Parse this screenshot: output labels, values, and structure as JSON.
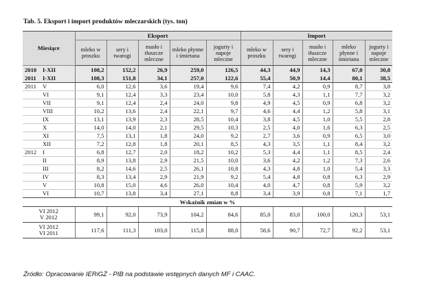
{
  "title": "Tab. 5. Eksport i import produktów mleczarskich (tys. ton)",
  "header": {
    "miesiace": "Miesiące",
    "eksport": "Eksport",
    "import": "Import",
    "cols_eksport": [
      "mleko w proszku",
      "sery i twarogi",
      "masło i tłuszcze mleczne",
      "mleko płynne i śmietana",
      "jogurty i napoje mleczne"
    ],
    "cols_import": [
      "mleko w proszku",
      "sery i twarogi",
      "masło i tłuszcze mleczne",
      "mleko płynne i śmietana",
      "jogurty i napoje mleczne"
    ]
  },
  "summary_rows": [
    {
      "year": "2010",
      "period": "I-XII",
      "values": [
        "108,2",
        "152,2",
        "26,9",
        "259,0",
        "126,5",
        "44,3",
        "44,9",
        "14,3",
        "67,0",
        "30,8"
      ]
    },
    {
      "year": "2011",
      "period": "I-XII",
      "values": [
        "108,3",
        "151,8",
        "34,1",
        "257,0",
        "122,6",
        "55,4",
        "50,9",
        "14,4",
        "80,1",
        "38,5"
      ]
    }
  ],
  "monthly_rows": [
    {
      "year": "2011",
      "month": "V",
      "values": [
        "6,0",
        "12,6",
        "3,6",
        "19,4",
        "9,6",
        "7,4",
        "4,2",
        "0,9",
        "8,7",
        "3,8"
      ]
    },
    {
      "year": "",
      "month": "VI",
      "values": [
        "9,1",
        "12,4",
        "3,3",
        "23,4",
        "10,0",
        "5,8",
        "4,3",
        "1,1",
        "7,7",
        "3,2"
      ]
    },
    {
      "year": "",
      "month": "VII",
      "values": [
        "9,1",
        "12,4",
        "2,4",
        "24,0",
        "9,8",
        "4,9",
        "4,5",
        "0,9",
        "6,8",
        "3,2"
      ]
    },
    {
      "year": "",
      "month": "VIII",
      "values": [
        "10,2",
        "13,6",
        "2,4",
        "22,1",
        "9,7",
        "4,6",
        "4,4",
        "1,2",
        "5,8",
        "3,1"
      ]
    },
    {
      "year": "",
      "month": "IX",
      "values": [
        "13,1",
        "13,9",
        "2,3",
        "28,5",
        "10,4",
        "3,8",
        "4,5",
        "1,0",
        "5,5",
        "2,8"
      ]
    },
    {
      "year": "",
      "month": "X",
      "values": [
        "14,0",
        "14,0",
        "2,1",
        "29,5",
        "10,3",
        "2,5",
        "4,0",
        "1,6",
        "6,3",
        "2,5"
      ]
    },
    {
      "year": "",
      "month": "XI",
      "values": [
        "7,5",
        "13,1",
        "1,8",
        "24,0",
        "9,2",
        "2,7",
        "3,6",
        "0,9",
        "6,5",
        "3,0"
      ]
    },
    {
      "year": "",
      "month": "XII",
      "values": [
        "7,2",
        "12,8",
        "1,8",
        "20,1",
        "8,5",
        "4,3",
        "3,5",
        "1,1",
        "8,4",
        "3,2"
      ]
    },
    {
      "year": "2012",
      "month": "I",
      "values": [
        "6,8",
        "12,7",
        "2,0",
        "18,2",
        "10,2",
        "5,3",
        "4,4",
        "1,1",
        "8,5",
        "2,4"
      ]
    },
    {
      "year": "",
      "month": "II",
      "values": [
        "8,9",
        "13,8",
        "2,9",
        "21,5",
        "10,0",
        "3,6",
        "4,2",
        "1,2",
        "7,3",
        "2,6"
      ]
    },
    {
      "year": "",
      "month": "III",
      "values": [
        "8,2",
        "14,6",
        "2,5",
        "26,1",
        "10,8",
        "4,3",
        "4,8",
        "1,0",
        "5,4",
        "3,3"
      ]
    },
    {
      "year": "",
      "month": "IV",
      "values": [
        "8,3",
        "13,4",
        "2,9",
        "21,9",
        "9,2",
        "5,4",
        "4,8",
        "0,8",
        "6,3",
        "2,9"
      ]
    },
    {
      "year": "",
      "month": "V",
      "values": [
        "10,8",
        "15,0",
        "4,6",
        "26,0",
        "10,4",
        "4,0",
        "4,7",
        "0,8",
        "5,9",
        "3,2"
      ]
    },
    {
      "year": "",
      "month": "VI",
      "values": [
        "10,7",
        "13,8",
        "3,4",
        "27,1",
        "8,8",
        "3,4",
        "3,9",
        "0,8",
        "7,1",
        "1,7"
      ]
    }
  ],
  "wskaznik_label": "Wskaźnik zmian w %",
  "index_rows": [
    {
      "line1": "VI 2012",
      "line2": "V 2012",
      "values": [
        "99,1",
        "92,0",
        "73,9",
        "104,2",
        "84,6",
        "85,0",
        "83,0",
        "100,0",
        "120,3",
        "53,1"
      ]
    },
    {
      "line1": "VI 2012",
      "line2": "VI 2011",
      "values": [
        "117,6",
        "111,3",
        "103,0",
        "115,8",
        "88,0",
        "58,6",
        "90,7",
        "72,7",
        "92,2",
        "53,1"
      ]
    }
  ],
  "source": "Źródło: Opracowanie IERiGŻ - PIB na podstawie wstępnych danych MF i CAAC."
}
